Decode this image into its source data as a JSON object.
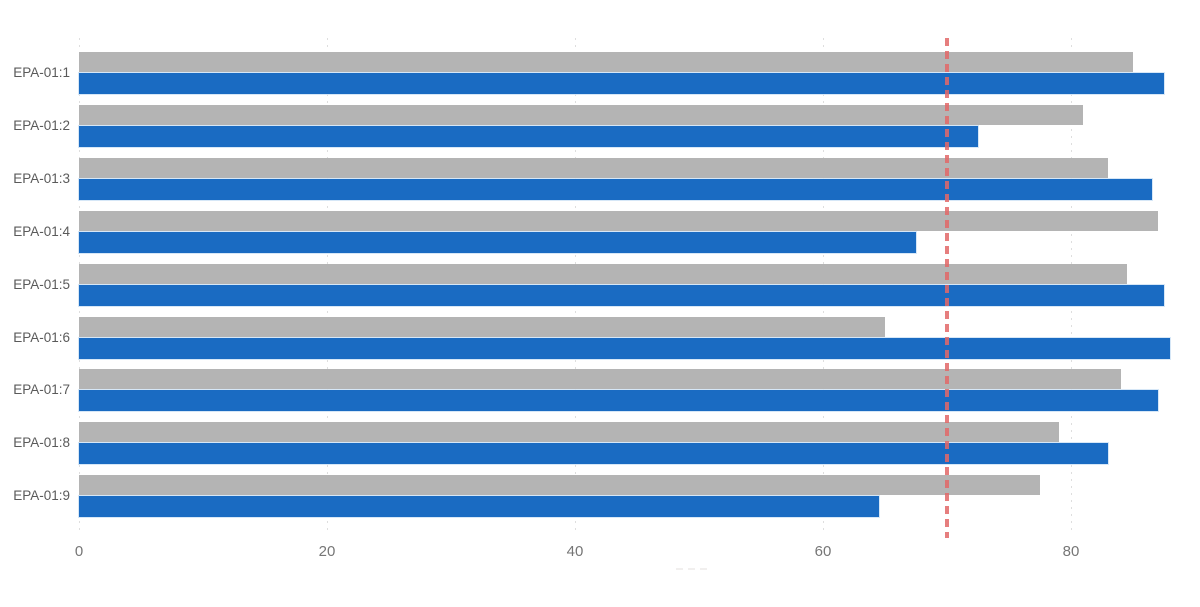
{
  "chart_data": {
    "type": "bar",
    "orientation": "horizontal",
    "title": "",
    "categories": [
      "EPA-01:1",
      "EPA-01:2",
      "EPA-01:3",
      "EPA-01:4",
      "EPA-01:5",
      "EPA-01:6",
      "EPA-01:7",
      "EPA-01:8",
      "EPA-01:9"
    ],
    "series": [
      {
        "name": "gray-series",
        "color": "#b4b4b4",
        "values": [
          85,
          81,
          83,
          87,
          84.5,
          65,
          84,
          79,
          77.5
        ]
      },
      {
        "name": "blue-series",
        "color": "#1a6bc2",
        "values": [
          87.5,
          72.5,
          86.5,
          67.5,
          87.5,
          88,
          87,
          83,
          64.5
        ]
      }
    ],
    "xlabel": "",
    "ylabel": "",
    "x_ticks": [
      0,
      20,
      40,
      60,
      80
    ],
    "xlim": [
      0,
      90.4
    ],
    "grid": "dotted-vertical",
    "gridline_color": "#dedede",
    "legend_position": "none",
    "reference_line": {
      "value": 70,
      "color": "#e26868",
      "style": "dashed"
    }
  },
  "decor": {
    "faint_marks_count": 3
  }
}
